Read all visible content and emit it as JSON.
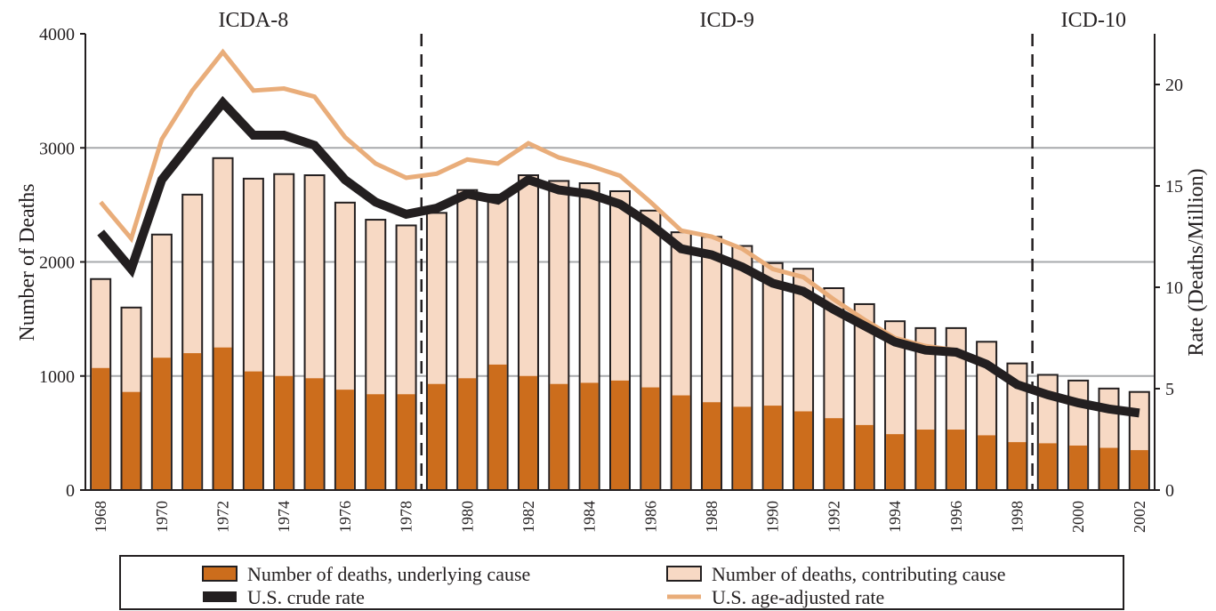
{
  "chart_data": {
    "type": "bar",
    "title": "",
    "xlabel": "",
    "ylabel": "Number of Deaths",
    "y2label": "Rate (Deaths/Million)",
    "ylim": [
      0,
      4000
    ],
    "y2lim": [
      0,
      22.5
    ],
    "yticks": [
      "0",
      "1000",
      "2000",
      "3000",
      "4000"
    ],
    "y2ticks": [
      "0",
      "5",
      "10",
      "15",
      "20"
    ],
    "grid": "horizontal",
    "legend_position": "bottom",
    "stacked": true,
    "categories": [
      "1968",
      "1969",
      "1970",
      "1971",
      "1972",
      "1973",
      "1974",
      "1975",
      "1976",
      "1977",
      "1978",
      "1979",
      "1980",
      "1981",
      "1982",
      "1983",
      "1984",
      "1985",
      "1986",
      "1987",
      "1988",
      "1989",
      "1990",
      "1991",
      "1992",
      "1993",
      "1994",
      "1995",
      "1996",
      "1997",
      "1998",
      "1999",
      "2000",
      "2001",
      "2002"
    ],
    "x_tick_labels": [
      "1968",
      "1970",
      "1972",
      "1974",
      "1976",
      "1978",
      "1980",
      "1982",
      "1984",
      "1986",
      "1988",
      "1990",
      "1992",
      "1994",
      "1996",
      "1998",
      "2000",
      "2002"
    ],
    "periods": [
      {
        "label": "ICDA-8",
        "start": "1968",
        "end": "1978"
      },
      {
        "label": "ICD-9",
        "start": "1979",
        "end": "1998"
      },
      {
        "label": "ICD-10",
        "start": "1999",
        "end": "2002"
      }
    ],
    "series": [
      {
        "name": "Number of deaths, underlying cause",
        "kind": "bar",
        "axis": "left",
        "color": "#cc6d1c",
        "values": [
          1070,
          860,
          1160,
          1200,
          1250,
          1040,
          1000,
          980,
          880,
          840,
          840,
          930,
          980,
          1100,
          1000,
          930,
          940,
          960,
          900,
          830,
          770,
          730,
          740,
          690,
          630,
          570,
          490,
          530,
          530,
          480,
          420,
          410,
          390,
          370,
          350
        ]
      },
      {
        "name": "Number of deaths, contributing cause",
        "kind": "bar",
        "axis": "left",
        "color": "#f7d9c4",
        "values": [
          1850,
          1600,
          2240,
          2590,
          2910,
          2730,
          2770,
          2760,
          2520,
          2370,
          2320,
          2430,
          2630,
          2590,
          2760,
          2710,
          2690,
          2620,
          2450,
          2260,
          2220,
          2140,
          1990,
          1940,
          1770,
          1630,
          1480,
          1420,
          1420,
          1300,
          1110,
          1010,
          960,
          890,
          860
        ]
      },
      {
        "name": "U.S. crude rate",
        "kind": "line",
        "axis": "right",
        "color": "#231f20",
        "values": [
          12.7,
          10.9,
          15.3,
          17.2,
          19.1,
          17.5,
          17.5,
          17.0,
          15.3,
          14.2,
          13.6,
          13.9,
          14.6,
          14.3,
          15.3,
          14.8,
          14.6,
          14.1,
          13.1,
          11.9,
          11.6,
          11.0,
          10.2,
          9.8,
          8.9,
          8.1,
          7.3,
          6.9,
          6.8,
          6.2,
          5.2,
          4.7,
          4.3,
          4.0,
          3.8
        ]
      },
      {
        "name": "U.S. age-adjusted rate",
        "kind": "line",
        "axis": "right",
        "color": "#e9ad7a",
        "values": [
          14.2,
          12.4,
          17.3,
          19.7,
          21.6,
          19.7,
          19.8,
          19.4,
          17.4,
          16.1,
          15.4,
          15.6,
          16.3,
          16.1,
          17.1,
          16.4,
          16.0,
          15.5,
          14.2,
          12.8,
          12.5,
          11.9,
          10.9,
          10.5,
          9.4,
          8.4,
          7.5,
          7.1,
          6.9,
          6.2,
          5.2,
          4.7,
          4.3,
          4.0,
          3.8
        ]
      }
    ]
  }
}
